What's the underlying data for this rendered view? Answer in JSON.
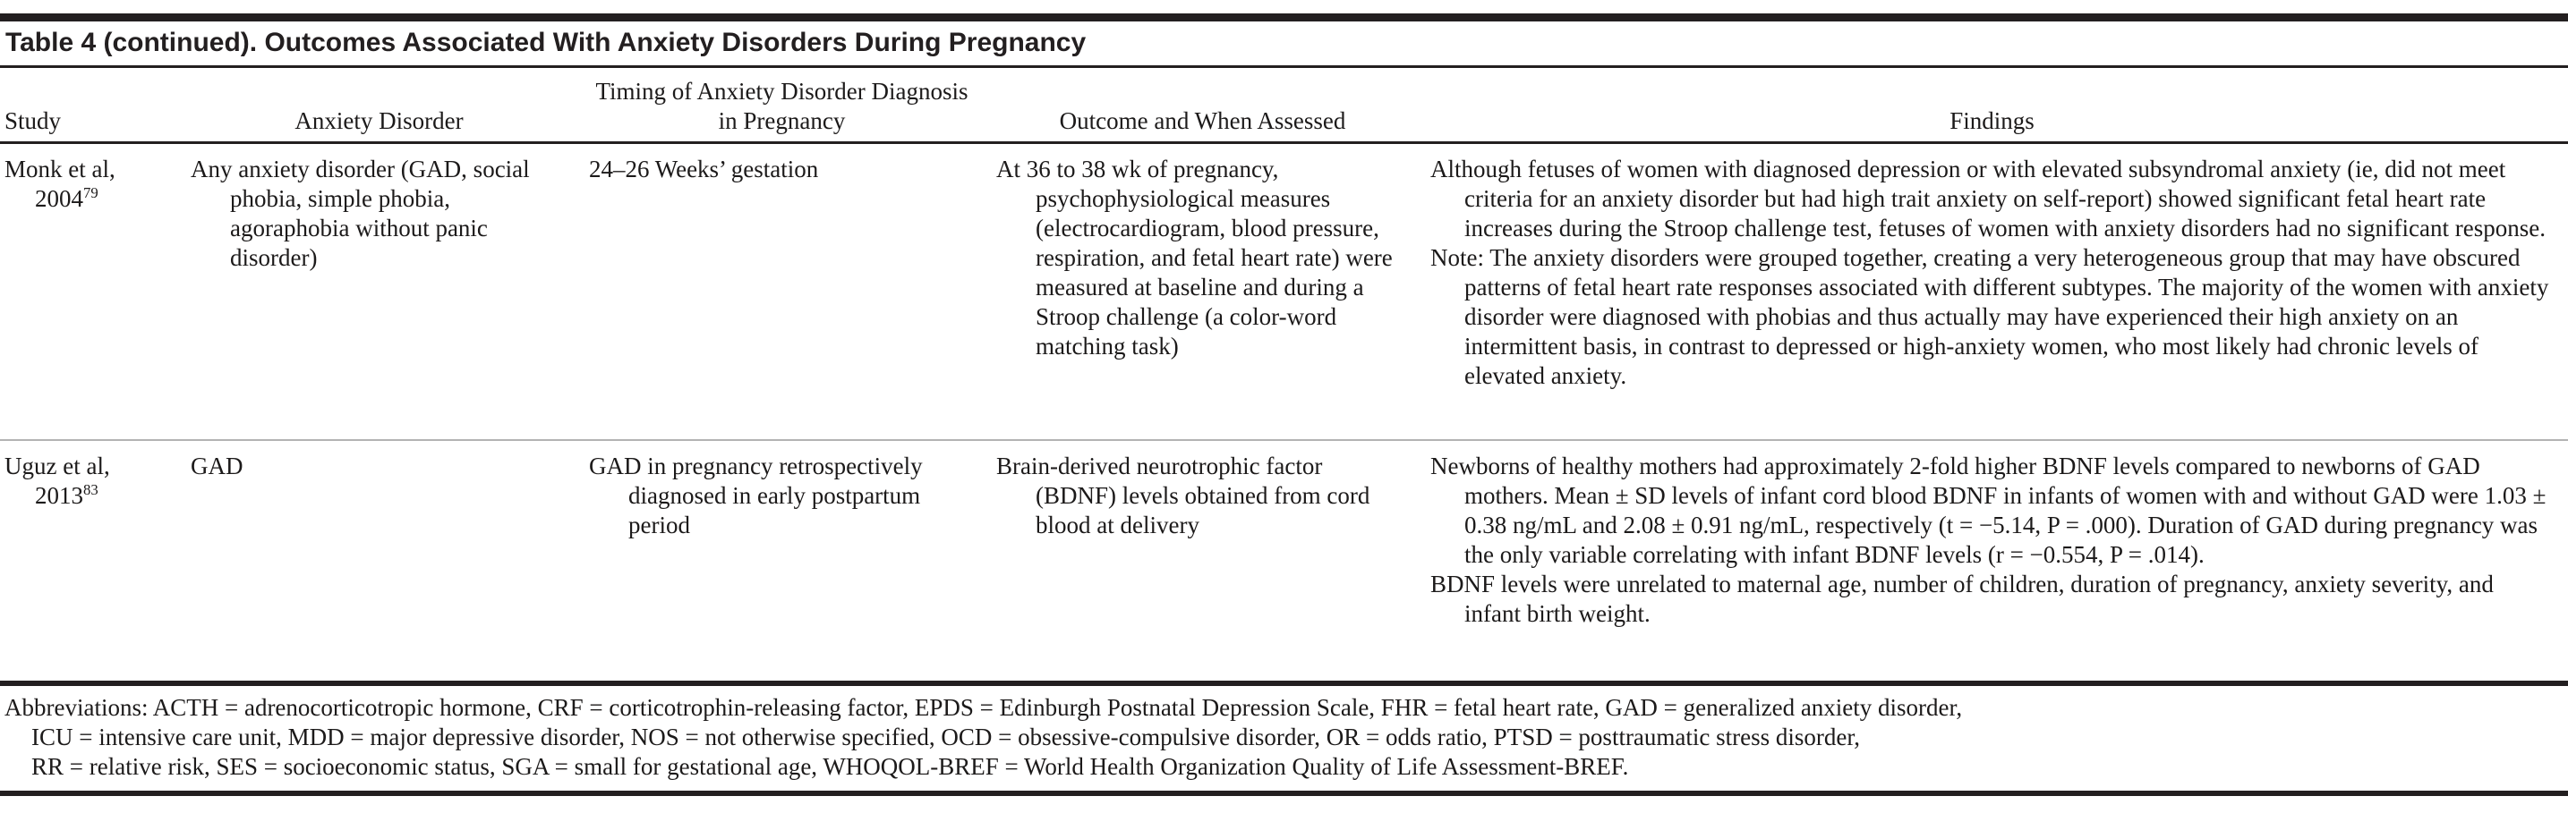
{
  "table": {
    "title": "Table 4 (continued). Outcomes Associated With Anxiety Disorders During Pregnancy",
    "columns": [
      {
        "label": "Study"
      },
      {
        "label": "Anxiety Disorder"
      },
      {
        "label": "Timing of Anxiety Disorder Diagnosis in Pregnancy"
      },
      {
        "label": "Outcome and When Assessed"
      },
      {
        "label": "Findings"
      }
    ],
    "rows": [
      {
        "study": "Monk et al,",
        "study_year": "2004",
        "study_ref": "79",
        "anxiety_disorder": "Any anxiety disorder (GAD, social phobia, simple phobia, agoraphobia without panic disorder)",
        "timing": "24–26 Weeks’ gestation",
        "outcome": "At 36 to 38 wk of pregnancy, psychophysiological measures (electrocardiogram, blood pressure, respiration, and fetal heart rate) were measured at baseline and during a Stroop challenge (a color-word matching task)",
        "findings": [
          "Although fetuses of women with diagnosed depression or with elevated subsyndromal anxiety (ie, did not meet criteria for an anxiety disorder but had high trait anxiety on self-report) showed significant fetal heart rate increases during the Stroop challenge test, fetuses of women with anxiety disorders had no significant response.",
          "Note: The anxiety disorders were grouped together, creating a very heterogeneous group that may have obscured patterns of fetal heart rate responses associated with different subtypes. The majority of the women with anxiety disorder were diagnosed with phobias and thus actually may have experienced their high anxiety on an intermittent basis, in contrast to depressed or high-anxiety women, who most likely had chronic levels of elevated anxiety."
        ]
      },
      {
        "study": "Uguz et al,",
        "study_year": "2013",
        "study_ref": "83",
        "anxiety_disorder": "GAD",
        "timing": "GAD in pregnancy retrospectively diagnosed in early postpartum period",
        "outcome": "Brain-derived neurotrophic factor (BDNF) levels obtained from cord blood at delivery",
        "findings": [
          "Newborns of healthy mothers had approximately 2-fold higher BDNF levels compared to newborns of GAD mothers. Mean ± SD levels of infant cord blood BDNF in infants of women with and without GAD were 1.03 ± 0.38 ng/mL and 2.08 ± 0.91 ng/mL, respectively (t = −5.14, P = .000). Duration of GAD during pregnancy was the only variable correlating with infant BDNF levels (r = −0.554, P = .014).",
          "BDNF levels were unrelated to maternal age, number of children, duration of pregnancy, anxiety severity, and infant birth weight."
        ]
      }
    ],
    "footnote_lines": [
      "Abbreviations: ACTH = adrenocorticotropic hormone, CRF = corticotrophin-releasing factor, EPDS = Edinburgh Postnatal Depression Scale, FHR = fetal heart rate, GAD = generalized anxiety disorder,",
      "ICU = intensive care unit, MDD = major depressive disorder, NOS = not otherwise specified, OCD = obsessive-compulsive disorder, OR = odds ratio,  PTSD = posttraumatic stress disorder,",
      "RR = relative risk, SES = socioeconomic status, SGA = small for gestational age, WHOQOL-BREF = World Health Organization Quality of Life Assessment-BREF."
    ],
    "colors": {
      "rule_dark": "#231f20",
      "rule_light": "#b3b3b3",
      "text": "#1c1a1a"
    }
  }
}
